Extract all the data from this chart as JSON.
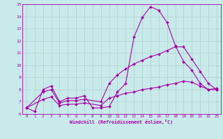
{
  "xlabel": "Windchill (Refroidissement éolien,°C)",
  "bg_color": "#c8eaea",
  "line_color": "#aa00aa",
  "grid_color": "#b0d0d0",
  "xlim": [
    -0.5,
    23.5
  ],
  "ylim": [
    6,
    15
  ],
  "yticks": [
    6,
    7,
    8,
    9,
    10,
    11,
    12,
    13,
    14,
    15
  ],
  "xticks": [
    0,
    1,
    2,
    3,
    4,
    5,
    6,
    7,
    8,
    9,
    10,
    11,
    12,
    13,
    14,
    15,
    16,
    17,
    18,
    19,
    20,
    21,
    22,
    23
  ],
  "curve1_x": [
    0,
    1,
    2,
    3,
    4,
    5,
    6,
    7,
    8,
    9,
    10,
    11,
    12,
    13,
    14,
    15,
    16,
    17,
    18,
    19,
    20,
    21,
    22,
    23
  ],
  "curve1_y": [
    6.5,
    6.2,
    8.0,
    8.3,
    7.0,
    7.3,
    7.3,
    7.5,
    6.5,
    6.5,
    6.6,
    7.8,
    8.5,
    12.3,
    13.9,
    14.8,
    14.5,
    13.5,
    11.6,
    10.3,
    9.6,
    8.5,
    8.0,
    8.1
  ],
  "curve2_x": [
    0,
    2,
    3,
    4,
    5,
    6,
    7,
    9,
    10,
    11,
    12,
    13,
    14,
    15,
    16,
    17,
    18,
    19,
    20,
    21,
    22,
    23
  ],
  "curve2_y": [
    6.5,
    7.8,
    8.0,
    6.9,
    7.1,
    7.1,
    7.2,
    7.0,
    8.5,
    9.2,
    9.7,
    10.1,
    10.4,
    10.7,
    10.9,
    11.2,
    11.5,
    11.5,
    10.5,
    9.5,
    8.5,
    8.0
  ],
  "curve3_x": [
    0,
    2,
    3,
    4,
    5,
    6,
    7,
    9,
    10,
    11,
    12,
    13,
    14,
    15,
    16,
    17,
    18,
    19,
    20,
    21,
    22,
    23
  ],
  "curve3_y": [
    6.5,
    7.2,
    7.4,
    6.7,
    6.8,
    6.8,
    6.9,
    6.7,
    7.3,
    7.5,
    7.7,
    7.8,
    8.0,
    8.1,
    8.2,
    8.4,
    8.5,
    8.7,
    8.6,
    8.3,
    8.0,
    8.0
  ]
}
